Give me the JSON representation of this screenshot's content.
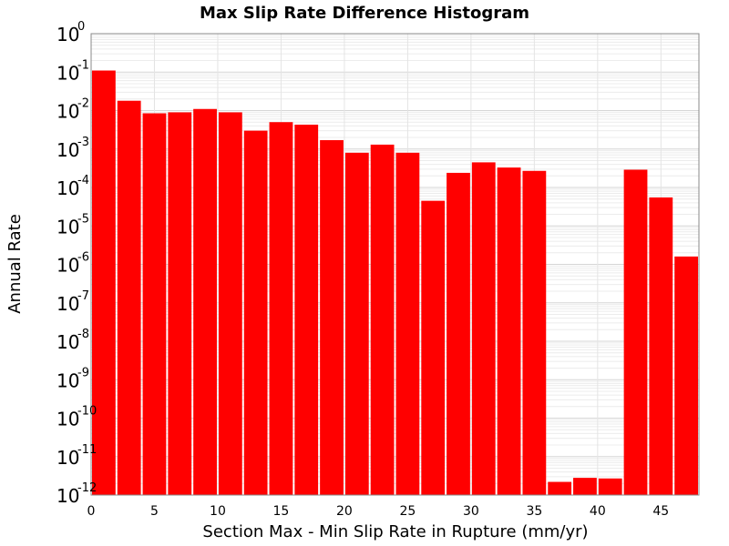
{
  "chart_data": {
    "type": "bar",
    "title": "Max Slip Rate Difference Histogram",
    "xlabel": "Section Max - Min Slip Rate in Rupture (mm/yr)",
    "ylabel": "Annual Rate",
    "y_scale": "log",
    "ylim": [
      1e-12,
      1
    ],
    "xlim": [
      0,
      48
    ],
    "bar_width": 2,
    "bar_color": "#ff0000",
    "x_ticks": [
      0,
      5,
      10,
      15,
      20,
      25,
      30,
      35,
      40,
      45
    ],
    "y_tick_exponents": [
      0,
      -1,
      -2,
      -3,
      -4,
      -5,
      -6,
      -7,
      -8,
      -9,
      -10,
      -11,
      -12
    ],
    "y_tick_base": "10",
    "grid": true,
    "legend": "none",
    "bars": [
      {
        "x_start": 0,
        "value": 0.11
      },
      {
        "x_start": 2,
        "value": 0.018
      },
      {
        "x_start": 4,
        "value": 0.0085
      },
      {
        "x_start": 6,
        "value": 0.009
      },
      {
        "x_start": 8,
        "value": 0.011
      },
      {
        "x_start": 10,
        "value": 0.009
      },
      {
        "x_start": 12,
        "value": 0.003
      },
      {
        "x_start": 14,
        "value": 0.005
      },
      {
        "x_start": 16,
        "value": 0.0043
      },
      {
        "x_start": 18,
        "value": 0.0017
      },
      {
        "x_start": 20,
        "value": 0.0008
      },
      {
        "x_start": 22,
        "value": 0.0013
      },
      {
        "x_start": 24,
        "value": 0.0008
      },
      {
        "x_start": 26,
        "value": 4.5e-05
      },
      {
        "x_start": 28,
        "value": 0.00024
      },
      {
        "x_start": 30,
        "value": 0.00045
      },
      {
        "x_start": 32,
        "value": 0.00033
      },
      {
        "x_start": 34,
        "value": 0.00027
      },
      {
        "x_start": 36,
        "value": 2.2e-12
      },
      {
        "x_start": 38,
        "value": 2.8e-12
      },
      {
        "x_start": 40,
        "value": 2.7e-12
      },
      {
        "x_start": 42,
        "value": 0.00029
      },
      {
        "x_start": 44,
        "value": 5.5e-05
      },
      {
        "x_start": 46,
        "value": 1.6e-06
      }
    ]
  }
}
